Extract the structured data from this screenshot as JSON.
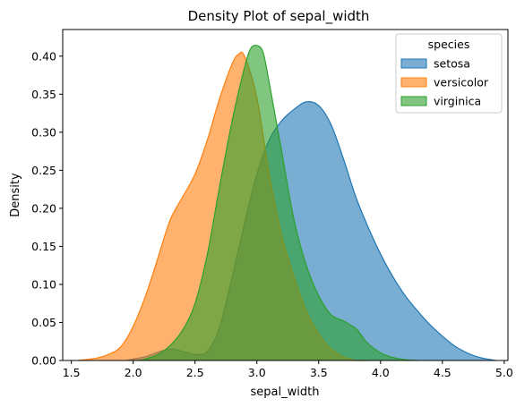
{
  "chart_data": {
    "type": "area",
    "title": "Density Plot of sepal_width",
    "xlabel": "sepal_width",
    "ylabel": "Density",
    "xlim": [
      1.43,
      5.03
    ],
    "ylim": [
      0,
      0.435
    ],
    "xticks": [
      1.5,
      2.0,
      2.5,
      3.0,
      3.5,
      4.0,
      4.5,
      5.0
    ],
    "xtick_labels": [
      "1.5",
      "2.0",
      "2.5",
      "3.0",
      "3.5",
      "4.0",
      "4.5",
      "5.0"
    ],
    "yticks": [
      0,
      0.05,
      0.1,
      0.15,
      0.2,
      0.25,
      0.3,
      0.35,
      0.4
    ],
    "ytick_labels": [
      "0.00",
      "0.05",
      "0.10",
      "0.15",
      "0.20",
      "0.25",
      "0.30",
      "0.35",
      "0.40"
    ],
    "grid": false,
    "legend": {
      "title": "species",
      "placement": "top-right"
    },
    "series": [
      {
        "name": "setosa",
        "color": "#1f77b4",
        "points": [
          [
            1.94,
            0
          ],
          [
            2.0,
            0.002
          ],
          [
            2.1,
            0.005
          ],
          [
            2.2,
            0.011
          ],
          [
            2.3,
            0.015
          ],
          [
            2.4,
            0.012
          ],
          [
            2.5,
            0.008
          ],
          [
            2.6,
            0.012
          ],
          [
            2.7,
            0.045
          ],
          [
            2.8,
            0.11
          ],
          [
            2.9,
            0.18
          ],
          [
            3.0,
            0.245
          ],
          [
            3.1,
            0.29
          ],
          [
            3.2,
            0.315
          ],
          [
            3.3,
            0.33
          ],
          [
            3.4,
            0.34
          ],
          [
            3.5,
            0.335
          ],
          [
            3.6,
            0.31
          ],
          [
            3.7,
            0.265
          ],
          [
            3.8,
            0.215
          ],
          [
            3.9,
            0.175
          ],
          [
            4.0,
            0.14
          ],
          [
            4.1,
            0.11
          ],
          [
            4.2,
            0.085
          ],
          [
            4.3,
            0.065
          ],
          [
            4.4,
            0.047
          ],
          [
            4.5,
            0.032
          ],
          [
            4.6,
            0.019
          ],
          [
            4.7,
            0.01
          ],
          [
            4.8,
            0.004
          ],
          [
            4.93,
            0
          ]
        ]
      },
      {
        "name": "versicolor",
        "color": "#ff7f0e",
        "points": [
          [
            1.55,
            0
          ],
          [
            1.7,
            0.003
          ],
          [
            1.8,
            0.008
          ],
          [
            1.9,
            0.018
          ],
          [
            2.0,
            0.045
          ],
          [
            2.1,
            0.085
          ],
          [
            2.2,
            0.135
          ],
          [
            2.3,
            0.185
          ],
          [
            2.4,
            0.215
          ],
          [
            2.5,
            0.245
          ],
          [
            2.6,
            0.29
          ],
          [
            2.7,
            0.345
          ],
          [
            2.8,
            0.39
          ],
          [
            2.85,
            0.402
          ],
          [
            2.9,
            0.4
          ],
          [
            3.0,
            0.345
          ],
          [
            3.1,
            0.245
          ],
          [
            3.2,
            0.165
          ],
          [
            3.3,
            0.11
          ],
          [
            3.4,
            0.065
          ],
          [
            3.5,
            0.035
          ],
          [
            3.6,
            0.015
          ],
          [
            3.7,
            0.005
          ],
          [
            3.8,
            0
          ],
          [
            3.9,
            0
          ]
        ]
      },
      {
        "name": "virginica",
        "color": "#2ca02c",
        "points": [
          [
            2.05,
            0
          ],
          [
            2.1,
            0.002
          ],
          [
            2.2,
            0.008
          ],
          [
            2.3,
            0.02
          ],
          [
            2.4,
            0.04
          ],
          [
            2.5,
            0.075
          ],
          [
            2.6,
            0.14
          ],
          [
            2.7,
            0.23
          ],
          [
            2.8,
            0.315
          ],
          [
            2.9,
            0.385
          ],
          [
            2.95,
            0.41
          ],
          [
            3.0,
            0.414
          ],
          [
            3.05,
            0.405
          ],
          [
            3.1,
            0.365
          ],
          [
            3.2,
            0.275
          ],
          [
            3.3,
            0.185
          ],
          [
            3.4,
            0.125
          ],
          [
            3.5,
            0.085
          ],
          [
            3.6,
            0.06
          ],
          [
            3.7,
            0.052
          ],
          [
            3.8,
            0.042
          ],
          [
            3.85,
            0.032
          ],
          [
            3.9,
            0.022
          ],
          [
            4.0,
            0.01
          ],
          [
            4.1,
            0.004
          ],
          [
            4.2,
            0.001
          ],
          [
            4.3,
            0
          ]
        ]
      }
    ]
  }
}
